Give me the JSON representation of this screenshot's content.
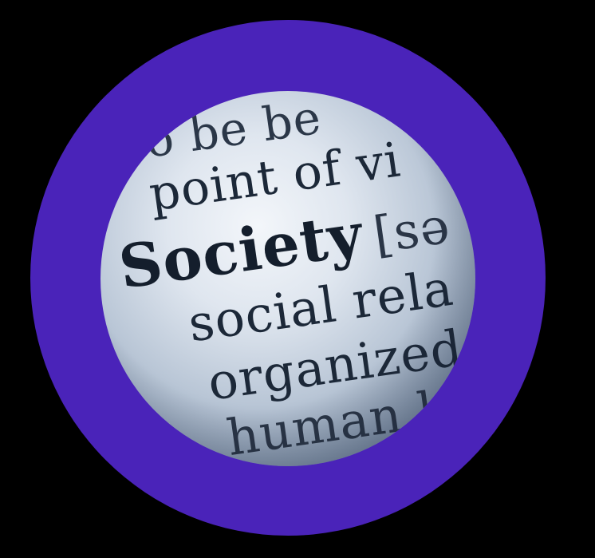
{
  "image": {
    "ring_color": "#4a23b9",
    "background_color": "#000000",
    "lens_text": {
      "line1": "to be be",
      "line2": "point of vi",
      "line3_word": "Society",
      "line3_bracket": "[sə",
      "line4": "social rela",
      "line5": "organized",
      "line6": "human l"
    }
  }
}
